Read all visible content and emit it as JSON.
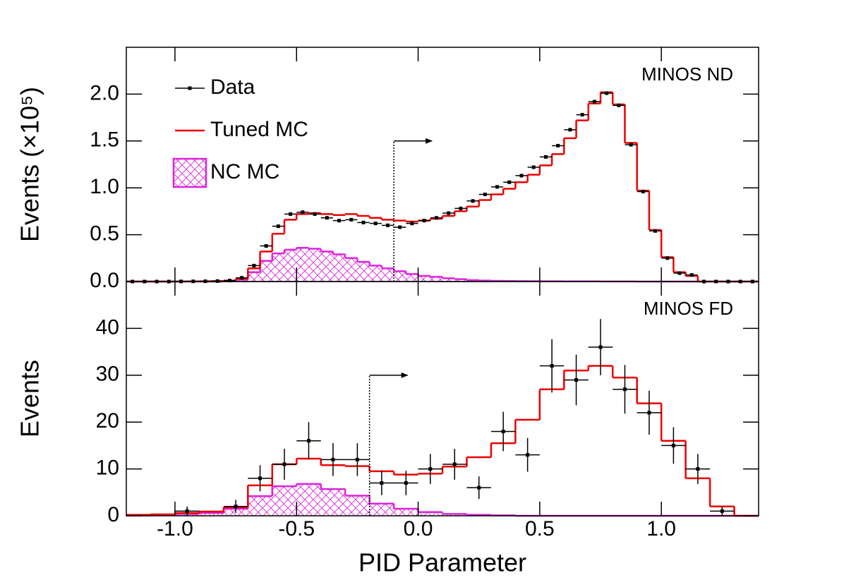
{
  "chart_data": [
    {
      "type": "histogram",
      "annotation": "MINOS ND",
      "y_label": "Events (×10⁵)",
      "bins": [
        -1.2,
        -1.15,
        -1.1,
        -1.05,
        -1.0,
        -0.95,
        -0.9,
        -0.85,
        -0.8,
        -0.75,
        -0.7,
        -0.65,
        -0.6,
        -0.55,
        -0.5,
        -0.45,
        -0.4,
        -0.35,
        -0.3,
        -0.25,
        -0.2,
        -0.15,
        -0.1,
        -0.05,
        0,
        0.05,
        0.1,
        0.15,
        0.2,
        0.25,
        0.3,
        0.35,
        0.4,
        0.45,
        0.5,
        0.55,
        0.6,
        0.65,
        0.7,
        0.75,
        0.8,
        0.85,
        0.9,
        0.95,
        1.0,
        1.05,
        1.1,
        1.15,
        1.2,
        1.25,
        1.3,
        1.35,
        1.4
      ],
      "xlim": [
        -1.2,
        1.4
      ],
      "xticks": [
        -1.0,
        -0.5,
        0,
        0.5,
        1.0
      ],
      "ylim": [
        0,
        2.5
      ],
      "yticks": [
        {
          "value": 0,
          "label": "0.0"
        },
        {
          "value": 0.5,
          "label": "0.5"
        },
        {
          "value": 1,
          "label": "1.0"
        },
        {
          "value": 1.5,
          "label": "1.5"
        },
        {
          "value": 2,
          "label": "2.0"
        }
      ],
      "cut": {
        "x": -0.1,
        "y": 1.5
      },
      "series": [
        {
          "name": "Data",
          "style": "errorbar",
          "color": "#000000",
          "values": [
            0,
            0,
            0,
            0,
            0.001,
            0.002,
            0.003,
            0.005,
            0.01,
            0.04,
            0.17,
            0.38,
            0.59,
            0.72,
            0.74,
            0.72,
            0.68,
            0.65,
            0.66,
            0.63,
            0.62,
            0.6,
            0.58,
            0.62,
            0.65,
            0.68,
            0.73,
            0.78,
            0.86,
            0.93,
            1.01,
            1.06,
            1.13,
            1.22,
            1.33,
            1.45,
            1.62,
            1.78,
            1.92,
            2.01,
            1.88,
            1.46,
            0.96,
            0.54,
            0.25,
            0.09,
            0.07,
            0,
            0,
            0,
            0,
            0
          ]
        },
        {
          "name": "Tuned MC",
          "style": "step",
          "color": "#ee0000",
          "values": [
            0,
            0,
            0,
            0,
            0.001,
            0.002,
            0.003,
            0.005,
            0.01,
            0.03,
            0.14,
            0.32,
            0.51,
            0.66,
            0.72,
            0.73,
            0.72,
            0.71,
            0.72,
            0.7,
            0.68,
            0.66,
            0.65,
            0.64,
            0.65,
            0.67,
            0.7,
            0.75,
            0.8,
            0.87,
            0.93,
            0.99,
            1.06,
            1.14,
            1.24,
            1.36,
            1.53,
            1.72,
            1.9,
            2.02,
            1.89,
            1.48,
            0.97,
            0.55,
            0.26,
            0.1,
            0.06,
            0,
            0,
            0,
            0,
            0
          ]
        },
        {
          "name": "NC MC",
          "style": "hatch",
          "color": "#dd22dd",
          "values": [
            0,
            0,
            0,
            0,
            0,
            0,
            0,
            0,
            0.005,
            0.02,
            0.1,
            0.22,
            0.3,
            0.34,
            0.36,
            0.35,
            0.32,
            0.29,
            0.25,
            0.21,
            0.17,
            0.14,
            0.11,
            0.08,
            0.06,
            0.05,
            0.035,
            0.025,
            0.015,
            0.01,
            0.008,
            0.006,
            0.005,
            0.004,
            0.003,
            0.003,
            0.002,
            0.002,
            0.002,
            0.001,
            0.001,
            0.001,
            0,
            0,
            0,
            0,
            0,
            0,
            0,
            0,
            0,
            0
          ]
        }
      ]
    },
    {
      "type": "histogram",
      "annotation": "MINOS FD",
      "y_label": "Events",
      "x_label": "PID Parameter",
      "bins": [
        -1.2,
        -1.1,
        -1.0,
        -0.9,
        -0.8,
        -0.7,
        -0.6,
        -0.5,
        -0.4,
        -0.3,
        -0.2,
        -0.1,
        0,
        0.1,
        0.2,
        0.3,
        0.4,
        0.5,
        0.6,
        0.7,
        0.8,
        0.9,
        1.0,
        1.1,
        1.2,
        1.3,
        1.4
      ],
      "xlim": [
        -1.2,
        1.4
      ],
      "xticks": [
        {
          "value": -1,
          "label": "-1.0"
        },
        {
          "value": -0.5,
          "label": "-0.5"
        },
        {
          "value": 0,
          "label": "0.0"
        },
        {
          "value": 0.5,
          "label": "0.5"
        },
        {
          "value": 1,
          "label": "1.0"
        }
      ],
      "ylim": [
        0,
        50
      ],
      "yticks": [
        0,
        10,
        20,
        30,
        40
      ],
      "cut": {
        "x": -0.2,
        "y": 30
      },
      "series": [
        {
          "style": "errorbar",
          "color": "#000000",
          "values": [
            null,
            null,
            1,
            null,
            2,
            8,
            11,
            16,
            12,
            12,
            7,
            7,
            10,
            11,
            6,
            18,
            13,
            32,
            29,
            36,
            27,
            22,
            15,
            10,
            1,
            null
          ],
          "errors": [
            null,
            null,
            1,
            null,
            1.4,
            2.8,
            3.3,
            4,
            3.5,
            3.5,
            2.6,
            2.6,
            3.2,
            3.3,
            2.4,
            4.2,
            3.6,
            5.7,
            5.4,
            6,
            5.2,
            4.7,
            3.9,
            3.2,
            1,
            null
          ]
        },
        {
          "style": "step",
          "color": "#ee0000",
          "values": [
            0.2,
            0.3,
            0.6,
            0.9,
            1.8,
            6.5,
            11,
            12.2,
            10.8,
            10.6,
            9.5,
            8.8,
            9,
            10.5,
            12.5,
            15.5,
            20.5,
            27,
            31,
            32,
            29.5,
            24,
            16,
            8,
            2,
            0
          ]
        },
        {
          "style": "hatch",
          "color": "#dd22dd",
          "values": [
            0.1,
            0.2,
            0.4,
            0.6,
            1.5,
            4.2,
            6.3,
            6.8,
            5.7,
            4.3,
            2.6,
            1.5,
            0.8,
            0.4,
            0.2,
            0.1,
            0,
            0,
            0,
            0,
            0,
            0,
            0,
            0,
            0,
            0
          ]
        }
      ]
    }
  ]
}
